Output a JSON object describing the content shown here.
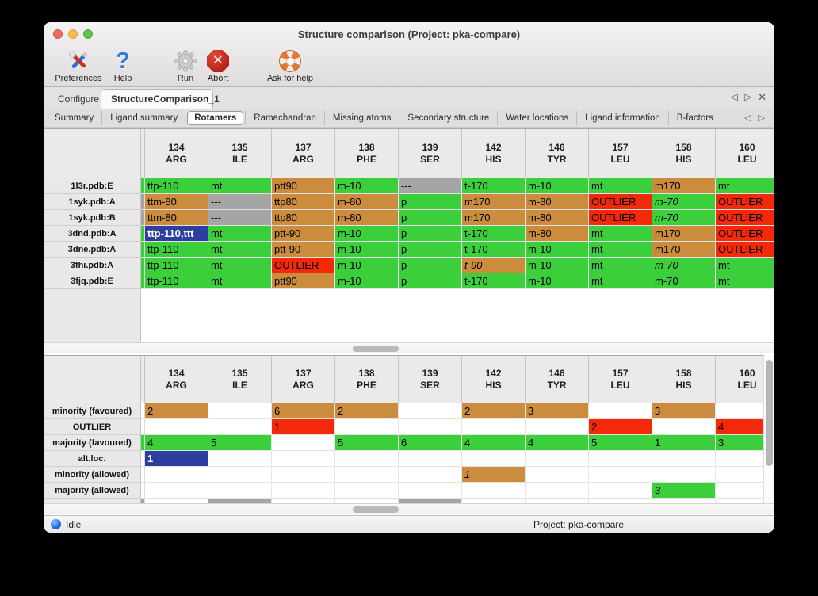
{
  "window": {
    "title": "Structure comparison (Project: pka-compare)"
  },
  "toolbar": {
    "items": [
      {
        "label": "Preferences",
        "icon": "tools-icon"
      },
      {
        "label": "Help",
        "icon": "help-icon"
      },
      {
        "label": "Run",
        "icon": "gear-icon",
        "disabled": true
      },
      {
        "label": "Abort",
        "icon": "abort-icon"
      },
      {
        "label": "Ask for help",
        "icon": "lifebuoy-icon"
      }
    ]
  },
  "nav": {
    "prev": "◁",
    "next": "▷",
    "close": "✕"
  },
  "tabs": {
    "items": [
      "Configure",
      "StructureComparison_1"
    ],
    "selected": "StructureComparison_1"
  },
  "subtabs": {
    "items": [
      "Summary",
      "Ligand summary",
      "Rotamers",
      "Ramachandran",
      "Missing atoms",
      "Secondary structure",
      "Water locations",
      "Ligand information",
      "B-factors"
    ],
    "selected": "Rotamers"
  },
  "colors": {
    "green": "#3ccf3c",
    "orange": "#cb8c3e",
    "red": "#f3290a",
    "gray": "#a5a5a5",
    "blue": "#2e3da0",
    "none": "#ffffff"
  },
  "columns": [
    {
      "num": "134",
      "res": "ARG"
    },
    {
      "num": "135",
      "res": "ILE"
    },
    {
      "num": "137",
      "res": "ARG"
    },
    {
      "num": "138",
      "res": "PHE"
    },
    {
      "num": "139",
      "res": "SER"
    },
    {
      "num": "142",
      "res": "HIS"
    },
    {
      "num": "146",
      "res": "TYR"
    },
    {
      "num": "157",
      "res": "LEU"
    },
    {
      "num": "158",
      "res": "HIS"
    },
    {
      "num": "160",
      "res": "LEU"
    }
  ],
  "structure_table": {
    "rows": [
      {
        "label": "1l3r.pdb:E",
        "edge": "green",
        "cells": [
          {
            "text": "ttp-110",
            "color": "green"
          },
          {
            "text": "mt",
            "color": "green"
          },
          {
            "text": "ptt90",
            "color": "orange"
          },
          {
            "text": "m-10",
            "color": "green"
          },
          {
            "text": "---",
            "color": "gray"
          },
          {
            "text": "t-170",
            "color": "green"
          },
          {
            "text": "m-10",
            "color": "green"
          },
          {
            "text": "mt",
            "color": "green"
          },
          {
            "text": "m170",
            "color": "orange"
          },
          {
            "text": "mt",
            "color": "green"
          }
        ]
      },
      {
        "label": "1syk.pdb:A",
        "edge": "gray",
        "cells": [
          {
            "text": "ttm-80",
            "color": "orange"
          },
          {
            "text": "---",
            "color": "gray"
          },
          {
            "text": "ttp80",
            "color": "orange"
          },
          {
            "text": "m-80",
            "color": "orange"
          },
          {
            "text": "p",
            "color": "green"
          },
          {
            "text": "m170",
            "color": "orange"
          },
          {
            "text": "m-80",
            "color": "orange"
          },
          {
            "text": "OUTLIER",
            "color": "red"
          },
          {
            "text": "m-70",
            "color": "green",
            "italic": true
          },
          {
            "text": "OUTLIER",
            "color": "red"
          }
        ]
      },
      {
        "label": "1syk.pdb:B",
        "edge": "gray",
        "cells": [
          {
            "text": "ttm-80",
            "color": "orange"
          },
          {
            "text": "---",
            "color": "gray"
          },
          {
            "text": "ttp80",
            "color": "orange"
          },
          {
            "text": "m-80",
            "color": "orange"
          },
          {
            "text": "p",
            "color": "green"
          },
          {
            "text": "m170",
            "color": "orange"
          },
          {
            "text": "m-80",
            "color": "orange"
          },
          {
            "text": "OUTLIER",
            "color": "red"
          },
          {
            "text": "m-70",
            "color": "green",
            "italic": true
          },
          {
            "text": "OUTLIER",
            "color": "red"
          }
        ]
      },
      {
        "label": "3dnd.pdb:A",
        "edge": "green",
        "cells": [
          {
            "text": "ttp-110,ttt",
            "color": "blue",
            "selected": true
          },
          {
            "text": "mt",
            "color": "green"
          },
          {
            "text": "ptt-90",
            "color": "orange"
          },
          {
            "text": "m-10",
            "color": "green"
          },
          {
            "text": "p",
            "color": "green"
          },
          {
            "text": "t-170",
            "color": "green"
          },
          {
            "text": "m-80",
            "color": "orange"
          },
          {
            "text": "mt",
            "color": "green"
          },
          {
            "text": "m170",
            "color": "orange"
          },
          {
            "text": "OUTLIER",
            "color": "red"
          }
        ]
      },
      {
        "label": "3dne.pdb:A",
        "edge": "green",
        "cells": [
          {
            "text": "ttp-110",
            "color": "green"
          },
          {
            "text": "mt",
            "color": "green"
          },
          {
            "text": "ptt-90",
            "color": "orange"
          },
          {
            "text": "m-10",
            "color": "green"
          },
          {
            "text": "p",
            "color": "green"
          },
          {
            "text": "t-170",
            "color": "green"
          },
          {
            "text": "m-10",
            "color": "green"
          },
          {
            "text": "mt",
            "color": "green"
          },
          {
            "text": "m170",
            "color": "orange"
          },
          {
            "text": "OUTLIER",
            "color": "red"
          }
        ]
      },
      {
        "label": "3fhi.pdb:A",
        "edge": "green",
        "cells": [
          {
            "text": "ttp-110",
            "color": "green"
          },
          {
            "text": "mt",
            "color": "green"
          },
          {
            "text": "OUTLIER",
            "color": "red"
          },
          {
            "text": "m-10",
            "color": "green"
          },
          {
            "text": "p",
            "color": "green"
          },
          {
            "text": "t-90",
            "color": "orange",
            "italic": true
          },
          {
            "text": "m-10",
            "color": "green"
          },
          {
            "text": "mt",
            "color": "green"
          },
          {
            "text": "m-70",
            "color": "green",
            "italic": true
          },
          {
            "text": "mt",
            "color": "green"
          }
        ]
      },
      {
        "label": "3fjq.pdb:E",
        "edge": "green",
        "cells": [
          {
            "text": "ttp-110",
            "color": "green"
          },
          {
            "text": "mt",
            "color": "green"
          },
          {
            "text": "ptt90",
            "color": "orange"
          },
          {
            "text": "m-10",
            "color": "green"
          },
          {
            "text": "p",
            "color": "green"
          },
          {
            "text": "t-170",
            "color": "green"
          },
          {
            "text": "m-10",
            "color": "green"
          },
          {
            "text": "mt",
            "color": "green"
          },
          {
            "text": "m-70",
            "color": "green"
          },
          {
            "text": "mt",
            "color": "green"
          }
        ]
      }
    ]
  },
  "summary_table": {
    "rows": [
      {
        "label": "minority (favoured)",
        "edge": "none",
        "cells": [
          {
            "text": "2",
            "color": "orange"
          },
          {
            "text": "",
            "color": "none"
          },
          {
            "text": "6",
            "color": "orange"
          },
          {
            "text": "2",
            "color": "orange"
          },
          {
            "text": "",
            "color": "none"
          },
          {
            "text": "2",
            "color": "orange"
          },
          {
            "text": "3",
            "color": "orange"
          },
          {
            "text": "",
            "color": "none"
          },
          {
            "text": "3",
            "color": "orange"
          },
          {
            "text": "",
            "color": "none"
          }
        ]
      },
      {
        "label": "OUTLIER",
        "edge": "none",
        "cells": [
          {
            "text": "",
            "color": "none"
          },
          {
            "text": "",
            "color": "none"
          },
          {
            "text": "1",
            "color": "red"
          },
          {
            "text": "",
            "color": "none"
          },
          {
            "text": "",
            "color": "none"
          },
          {
            "text": "",
            "color": "none"
          },
          {
            "text": "",
            "color": "none"
          },
          {
            "text": "2",
            "color": "red"
          },
          {
            "text": "",
            "color": "none"
          },
          {
            "text": "4",
            "color": "red"
          }
        ]
      },
      {
        "label": "majority (favoured)",
        "edge": "green",
        "cells": [
          {
            "text": "4",
            "color": "green"
          },
          {
            "text": "5",
            "color": "green"
          },
          {
            "text": "",
            "color": "none"
          },
          {
            "text": "5",
            "color": "green"
          },
          {
            "text": "6",
            "color": "green"
          },
          {
            "text": "4",
            "color": "green"
          },
          {
            "text": "4",
            "color": "green"
          },
          {
            "text": "5",
            "color": "green"
          },
          {
            "text": "1",
            "color": "green"
          },
          {
            "text": "3",
            "color": "green"
          }
        ]
      },
      {
        "label": "alt.loc.",
        "edge": "none",
        "cells": [
          {
            "text": "1",
            "color": "blue",
            "selected": true
          },
          {
            "text": "",
            "color": "none"
          },
          {
            "text": "",
            "color": "none"
          },
          {
            "text": "",
            "color": "none"
          },
          {
            "text": "",
            "color": "none"
          },
          {
            "text": "",
            "color": "none"
          },
          {
            "text": "",
            "color": "none"
          },
          {
            "text": "",
            "color": "none"
          },
          {
            "text": "",
            "color": "none"
          },
          {
            "text": "",
            "color": "none"
          }
        ]
      },
      {
        "label": "minority (allowed)",
        "edge": "none",
        "cells": [
          {
            "text": "",
            "color": "none"
          },
          {
            "text": "",
            "color": "none"
          },
          {
            "text": "",
            "color": "none"
          },
          {
            "text": "",
            "color": "none"
          },
          {
            "text": "",
            "color": "none"
          },
          {
            "text": "1",
            "color": "orange",
            "italic": true
          },
          {
            "text": "",
            "color": "none"
          },
          {
            "text": "",
            "color": "none"
          },
          {
            "text": "",
            "color": "none"
          },
          {
            "text": "",
            "color": "none"
          }
        ]
      },
      {
        "label": "majority (allowed)",
        "edge": "none",
        "cells": [
          {
            "text": "",
            "color": "none"
          },
          {
            "text": "",
            "color": "none"
          },
          {
            "text": "",
            "color": "none"
          },
          {
            "text": "",
            "color": "none"
          },
          {
            "text": "",
            "color": "none"
          },
          {
            "text": "",
            "color": "none"
          },
          {
            "text": "",
            "color": "none"
          },
          {
            "text": "",
            "color": "none"
          },
          {
            "text": "3",
            "color": "green",
            "italic": true
          },
          {
            "text": "",
            "color": "none"
          }
        ]
      }
    ],
    "partial_row": {
      "edge": "gray",
      "cells": [
        "none",
        "gray",
        "none",
        "none",
        "gray",
        "none",
        "none",
        "none",
        "none",
        "none"
      ]
    }
  },
  "statusbar": {
    "status": "Idle",
    "project": "Project: pka-compare"
  }
}
